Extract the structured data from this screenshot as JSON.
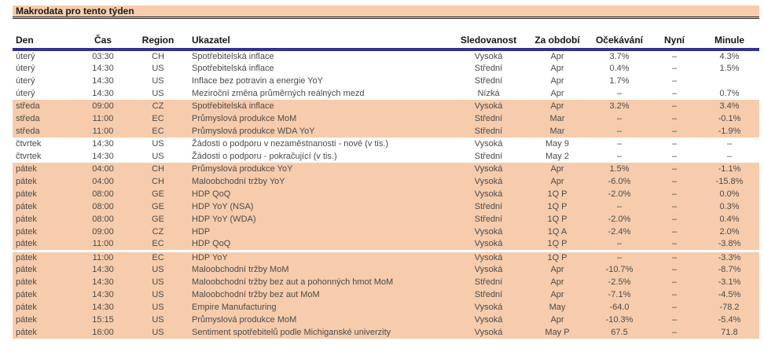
{
  "title": "Makrodata pro tento týden",
  "colors": {
    "band_peach": "#F7CCAC",
    "header_rule_navy": "#31318F",
    "body_text": "#4b4b4b"
  },
  "table": {
    "columns": [
      "Den",
      "Čas",
      "Region",
      "Ukazatel",
      "Sledovanost",
      "Za období",
      "Očekávání",
      "Nyní",
      "Minule"
    ],
    "rows": [
      {
        "day": "úterý",
        "time": "03:30",
        "region": "CH",
        "indicator": "Spotřebitelská inflace",
        "attention": "Vysoká",
        "period": "Apr",
        "expect": "3.7%",
        "now": "–",
        "last": "4.3%",
        "shaded": false,
        "gap_above": false
      },
      {
        "day": "úterý",
        "time": "14:30",
        "region": "US",
        "indicator": "Spotřebitelská inflace",
        "attention": "Střední",
        "period": "Apr",
        "expect": "0.4%",
        "now": "–",
        "last": "1.5%",
        "shaded": false,
        "gap_above": false
      },
      {
        "day": "úterý",
        "time": "14:30",
        "region": "US",
        "indicator": "Inflace bez potravin a energie YoY",
        "attention": "Střední",
        "period": "Apr",
        "expect": "1.7%",
        "now": "–",
        "last": "",
        "shaded": false,
        "gap_above": false
      },
      {
        "day": "úterý",
        "time": "14:30",
        "region": "US",
        "indicator": "Meziroční změna průměrných reálných mezd",
        "attention": "Nízká",
        "period": "Apr",
        "expect": "–",
        "now": "–",
        "last": "0.7%",
        "shaded": false,
        "gap_above": false
      },
      {
        "day": "středa",
        "time": "09:00",
        "region": "CZ",
        "indicator": "Spotřebitelská inflace",
        "attention": "Vysoká",
        "period": "Apr",
        "expect": "3.2%",
        "now": "–",
        "last": "3.4%",
        "shaded": true,
        "gap_above": false
      },
      {
        "day": "středa",
        "time": "11:00",
        "region": "EC",
        "indicator": "Průmyslová produkce MoM",
        "attention": "Střední",
        "period": "Mar",
        "expect": "–",
        "now": "–",
        "last": "-0.1%",
        "shaded": true,
        "gap_above": false
      },
      {
        "day": "středa",
        "time": "11:00",
        "region": "EC",
        "indicator": "Průmyslová produkce WDA YoY",
        "attention": "Střední",
        "period": "Mar",
        "expect": "–",
        "now": "–",
        "last": "-1.9%",
        "shaded": true,
        "gap_above": false
      },
      {
        "day": "čtvrtek",
        "time": "14:30",
        "region": "US",
        "indicator": "Žádosti o podporu v nezaměstnanosti - nové (v tis.)",
        "attention": "Vysoká",
        "period": "May 9",
        "expect": "–",
        "now": "–",
        "last": "–",
        "shaded": false,
        "gap_above": false
      },
      {
        "day": "čtvrtek",
        "time": "14:30",
        "region": "US",
        "indicator": "Žádosti o podporu - pokračující (v tis.)",
        "attention": "Střední",
        "period": "May 2",
        "expect": "–",
        "now": "–",
        "last": "–",
        "shaded": false,
        "gap_above": false
      },
      {
        "day": "pátek",
        "time": "04:00",
        "region": "CH",
        "indicator": "Průmyslová produkce YoY",
        "attention": "Vysoká",
        "period": "Apr",
        "expect": "1.5%",
        "now": "–",
        "last": "-1.1%",
        "shaded": true,
        "gap_above": false
      },
      {
        "day": "pátek",
        "time": "04:00",
        "region": "CH",
        "indicator": "Maloobchodní tržby YoY",
        "attention": "Vysoká",
        "period": "Apr",
        "expect": "-6.0%",
        "now": "–",
        "last": "-15.8%",
        "shaded": true,
        "gap_above": false
      },
      {
        "day": "pátek",
        "time": "08:00",
        "region": "GE",
        "indicator": "HDP QoQ",
        "attention": "Vysoká",
        "period": "1Q P",
        "expect": "-2.0%",
        "now": "–",
        "last": "0.0%",
        "shaded": true,
        "gap_above": false
      },
      {
        "day": "pátek",
        "time": "08:00",
        "region": "GE",
        "indicator": "HDP YoY (NSA)",
        "attention": "Střední",
        "period": "1Q P",
        "expect": "–",
        "now": "–",
        "last": "0.3%",
        "shaded": true,
        "gap_above": false
      },
      {
        "day": "pátek",
        "time": "08:00",
        "region": "GE",
        "indicator": "HDP YoY (WDA)",
        "attention": "Střední",
        "period": "1Q P",
        "expect": "-2.0%",
        "now": "–",
        "last": "0.4%",
        "shaded": true,
        "gap_above": false
      },
      {
        "day": "pátek",
        "time": "09:00",
        "region": "CZ",
        "indicator": "HDP",
        "attention": "Vysoká",
        "period": "1Q A",
        "expect": "-2.4%",
        "now": "–",
        "last": "2.0%",
        "shaded": true,
        "gap_above": false
      },
      {
        "day": "pátek",
        "time": "11:00",
        "region": "EC",
        "indicator": "HDP QoQ",
        "attention": "Vysoká",
        "period": "1Q P",
        "expect": "–",
        "now": "–",
        "last": "-3.8%",
        "shaded": true,
        "gap_above": false
      },
      {
        "day": "pátek",
        "time": "11:00",
        "region": "EC",
        "indicator": "HDP YoY",
        "attention": "Vysoká",
        "period": "1Q P",
        "expect": "–",
        "now": "–",
        "last": "-3.3%",
        "shaded": true,
        "gap_above": true
      },
      {
        "day": "pátek",
        "time": "14:30",
        "region": "US",
        "indicator": "Maloobchodní tržby MoM",
        "attention": "Vysoká",
        "period": "Apr",
        "expect": "-10.7%",
        "now": "–",
        "last": "-8.7%",
        "shaded": true,
        "gap_above": false
      },
      {
        "day": "pátek",
        "time": "14:30",
        "region": "US",
        "indicator": "Maloobchodní tržby bez aut a pohonných hmot MoM",
        "attention": "Střední",
        "period": "Apr",
        "expect": "-2.5%",
        "now": "–",
        "last": "-3.1%",
        "shaded": true,
        "gap_above": false
      },
      {
        "day": "pátek",
        "time": "14:30",
        "region": "US",
        "indicator": "Maloobchodní tržby bez aut MoM",
        "attention": "Střední",
        "period": "Apr",
        "expect": "-7.1%",
        "now": "–",
        "last": "-4.5%",
        "shaded": true,
        "gap_above": false
      },
      {
        "day": "pátek",
        "time": "14:30",
        "region": "US",
        "indicator": "Empire Manufacturing",
        "attention": "Vysoká",
        "period": "May",
        "expect": "-64.0",
        "now": "–",
        "last": "-78.2",
        "shaded": true,
        "gap_above": false
      },
      {
        "day": "pátek",
        "time": "15:15",
        "region": "US",
        "indicator": "Průmyslová produkce MoM",
        "attention": "Vysoká",
        "period": "Apr",
        "expect": "-10.3%",
        "now": "–",
        "last": "-5.4%",
        "shaded": true,
        "gap_above": false
      },
      {
        "day": "pátek",
        "time": "16:00",
        "region": "US",
        "indicator": "Sentiment spotřebitelů podle Michiganské univerzity",
        "attention": "Vysoká",
        "period": "May P",
        "expect": "67.5",
        "now": "–",
        "last": "71.8",
        "shaded": true,
        "gap_above": false
      }
    ]
  }
}
